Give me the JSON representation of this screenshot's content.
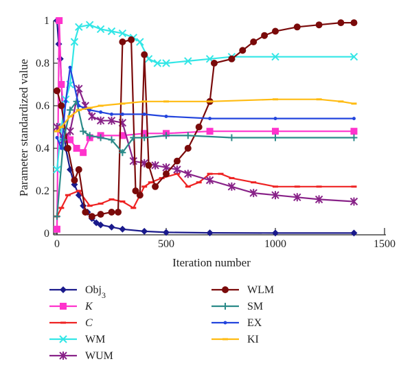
{
  "chart_data": {
    "type": "line",
    "xlabel": "Iteration number",
    "ylabel": "Parameter standardized value",
    "xlim": [
      0,
      1500
    ],
    "ylim": [
      0,
      1
    ],
    "x_ticks": [
      "0",
      "500",
      "1000",
      "1500"
    ],
    "y_ticks": [
      "0",
      "0.2",
      "0.4",
      "0.6",
      "0.8",
      "1"
    ],
    "legend_placement": "below",
    "series": [
      {
        "name": "Obj",
        "name_sub": "3",
        "color": "#1a1a8c",
        "marker": "diamond",
        "points": [
          [
            0,
            1
          ],
          [
            8,
            0.89
          ],
          [
            15,
            0.82
          ],
          [
            25,
            0.6
          ],
          [
            40,
            0.4
          ],
          [
            60,
            0.3
          ],
          [
            80,
            0.23
          ],
          [
            100,
            0.18
          ],
          [
            120,
            0.13
          ],
          [
            140,
            0.1
          ],
          [
            160,
            0.07
          ],
          [
            180,
            0.05
          ],
          [
            200,
            0.04
          ],
          [
            250,
            0.03
          ],
          [
            300,
            0.02
          ],
          [
            400,
            0.01
          ],
          [
            500,
            0.005
          ],
          [
            700,
            0.003
          ],
          [
            1000,
            0.002
          ],
          [
            1360,
            0.002
          ]
        ]
      },
      {
        "name": "K",
        "italic": true,
        "color": "#ff33cc",
        "marker": "square",
        "points": [
          [
            0,
            0.02
          ],
          [
            10,
            1
          ],
          [
            20,
            0.7
          ],
          [
            40,
            0.45
          ],
          [
            60,
            0.44
          ],
          [
            90,
            0.4
          ],
          [
            120,
            0.38
          ],
          [
            150,
            0.45
          ],
          [
            200,
            0.46
          ],
          [
            300,
            0.46
          ],
          [
            400,
            0.47
          ],
          [
            500,
            0.47
          ],
          [
            700,
            0.48
          ],
          [
            1000,
            0.48
          ],
          [
            1360,
            0.48
          ]
        ]
      },
      {
        "name": "C",
        "italic": true,
        "color": "#ee2222",
        "marker": "dash",
        "points": [
          [
            0,
            0.08
          ],
          [
            20,
            0.12
          ],
          [
            50,
            0.18
          ],
          [
            100,
            0.2
          ],
          [
            150,
            0.13
          ],
          [
            200,
            0.14
          ],
          [
            250,
            0.16
          ],
          [
            300,
            0.15
          ],
          [
            350,
            0.12
          ],
          [
            400,
            0.22
          ],
          [
            430,
            0.24
          ],
          [
            480,
            0.26
          ],
          [
            550,
            0.28
          ],
          [
            600,
            0.22
          ],
          [
            650,
            0.24
          ],
          [
            700,
            0.28
          ],
          [
            750,
            0.28
          ],
          [
            800,
            0.26
          ],
          [
            900,
            0.24
          ],
          [
            1000,
            0.22
          ],
          [
            1100,
            0.22
          ],
          [
            1200,
            0.22
          ],
          [
            1360,
            0.22
          ]
        ]
      },
      {
        "name": "WM",
        "color": "#33e6e6",
        "marker": "x",
        "points": [
          [
            0,
            0.3
          ],
          [
            20,
            0.5
          ],
          [
            40,
            0.63
          ],
          [
            60,
            0.7
          ],
          [
            80,
            0.9
          ],
          [
            100,
            0.97
          ],
          [
            150,
            0.98
          ],
          [
            200,
            0.96
          ],
          [
            250,
            0.95
          ],
          [
            300,
            0.94
          ],
          [
            350,
            0.92
          ],
          [
            380,
            0.9
          ],
          [
            420,
            0.82
          ],
          [
            460,
            0.8
          ],
          [
            500,
            0.8
          ],
          [
            600,
            0.81
          ],
          [
            700,
            0.82
          ],
          [
            800,
            0.83
          ],
          [
            1000,
            0.83
          ],
          [
            1360,
            0.83
          ]
        ]
      },
      {
        "name": "WUM",
        "color": "#882288",
        "marker": "asterisk",
        "points": [
          [
            0,
            0.5
          ],
          [
            30,
            0.44
          ],
          [
            60,
            0.48
          ],
          [
            100,
            0.68
          ],
          [
            130,
            0.6
          ],
          [
            160,
            0.55
          ],
          [
            200,
            0.53
          ],
          [
            250,
            0.53
          ],
          [
            300,
            0.52
          ],
          [
            350,
            0.34
          ],
          [
            400,
            0.33
          ],
          [
            450,
            0.32
          ],
          [
            500,
            0.31
          ],
          [
            550,
            0.3
          ],
          [
            600,
            0.28
          ],
          [
            700,
            0.25
          ],
          [
            800,
            0.22
          ],
          [
            900,
            0.19
          ],
          [
            1000,
            0.18
          ],
          [
            1100,
            0.17
          ],
          [
            1200,
            0.16
          ],
          [
            1360,
            0.15
          ]
        ]
      },
      {
        "name": "WLM",
        "color": "#7a0a0a",
        "marker": "circle",
        "points": [
          [
            0,
            0.67
          ],
          [
            20,
            0.6
          ],
          [
            50,
            0.4
          ],
          [
            80,
            0.25
          ],
          [
            100,
            0.3
          ],
          [
            130,
            0.1
          ],
          [
            160,
            0.08
          ],
          [
            200,
            0.09
          ],
          [
            250,
            0.1
          ],
          [
            280,
            0.1
          ],
          [
            300,
            0.9
          ],
          [
            340,
            0.91
          ],
          [
            360,
            0.2
          ],
          [
            380,
            0.18
          ],
          [
            400,
            0.84
          ],
          [
            420,
            0.32
          ],
          [
            450,
            0.22
          ],
          [
            500,
            0.28
          ],
          [
            550,
            0.34
          ],
          [
            600,
            0.4
          ],
          [
            650,
            0.5
          ],
          [
            700,
            0.62
          ],
          [
            720,
            0.8
          ],
          [
            800,
            0.82
          ],
          [
            850,
            0.86
          ],
          [
            900,
            0.9
          ],
          [
            950,
            0.93
          ],
          [
            1000,
            0.95
          ],
          [
            1100,
            0.97
          ],
          [
            1200,
            0.98
          ],
          [
            1300,
            0.99
          ],
          [
            1360,
            0.99
          ]
        ]
      },
      {
        "name": "SM",
        "color": "#2a8a88",
        "marker": "plus",
        "points": [
          [
            0,
            0.08
          ],
          [
            30,
            0.44
          ],
          [
            60,
            0.58
          ],
          [
            90,
            0.62
          ],
          [
            120,
            0.48
          ],
          [
            150,
            0.46
          ],
          [
            200,
            0.45
          ],
          [
            250,
            0.44
          ],
          [
            300,
            0.38
          ],
          [
            350,
            0.45
          ],
          [
            400,
            0.45
          ],
          [
            500,
            0.46
          ],
          [
            600,
            0.46
          ],
          [
            800,
            0.45
          ],
          [
            1000,
            0.45
          ],
          [
            1360,
            0.45
          ]
        ]
      },
      {
        "name": "EX",
        "color": "#2244dd",
        "marker": "dot",
        "points": [
          [
            0,
            0.45
          ],
          [
            20,
            0.4
          ],
          [
            40,
            0.62
          ],
          [
            60,
            0.78
          ],
          [
            100,
            0.6
          ],
          [
            150,
            0.58
          ],
          [
            200,
            0.57
          ],
          [
            250,
            0.56
          ],
          [
            300,
            0.56
          ],
          [
            400,
            0.56
          ],
          [
            500,
            0.55
          ],
          [
            700,
            0.54
          ],
          [
            1000,
            0.54
          ],
          [
            1360,
            0.54
          ]
        ]
      },
      {
        "name": "KI",
        "color": "#ffbb11",
        "marker": "dash",
        "points": [
          [
            0,
            0.48
          ],
          [
            20,
            0.5
          ],
          [
            60,
            0.55
          ],
          [
            100,
            0.58
          ],
          [
            150,
            0.59
          ],
          [
            200,
            0.6
          ],
          [
            300,
            0.61
          ],
          [
            400,
            0.62
          ],
          [
            500,
            0.62
          ],
          [
            700,
            0.62
          ],
          [
            1000,
            0.63
          ],
          [
            1200,
            0.63
          ],
          [
            1300,
            0.62
          ],
          [
            1360,
            0.61
          ]
        ]
      }
    ]
  }
}
